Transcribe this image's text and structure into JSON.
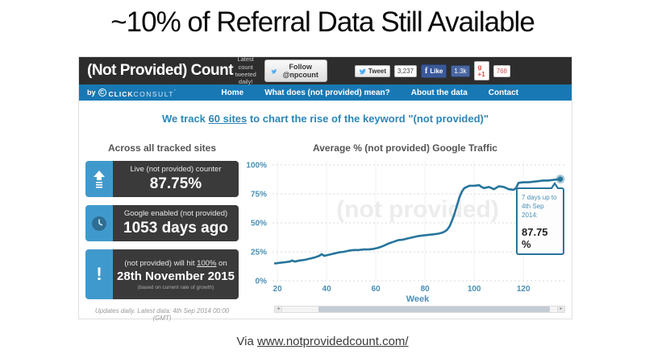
{
  "slide": {
    "title": "~10% of Referral Data Still Available",
    "attribution_prefix": "Via ",
    "attribution_link": "www.notprovidedcount.com/"
  },
  "site": {
    "header": {
      "logo": "(Not Provided) Count",
      "tweet_note_line1": "Latest count",
      "tweet_note_line2": "tweeted daily!",
      "follow_button": "Follow @npcount",
      "tweet_button": "Tweet",
      "tweet_count": "3,237",
      "like_button": "Like",
      "like_count": "1.3k",
      "fb_glyph": "f",
      "gplus_button": "g +1",
      "gplus_count": "768"
    },
    "nav": {
      "byline_by": "by",
      "logo_letter": "C",
      "brand_strong": "CLICK",
      "brand_light": "CONSULT",
      "brand_mark": "’",
      "items": [
        "Home",
        "What does (not provided) mean?",
        "About the data",
        "Contact"
      ]
    },
    "tagline": {
      "pre": "We track ",
      "link": "60 sites",
      "post": " to chart the rise of the keyword \"(not provided)\""
    },
    "left_panel": {
      "heading": "Across all tracked sites",
      "stat_live": {
        "label": "Live (not provided) counter",
        "value": "87.75%"
      },
      "stat_enabled": {
        "label": "Google enabled (not provided)",
        "value": "1053 days ago"
      },
      "stat_forecast": {
        "label_pre": "(not provided) will hit ",
        "label_link": "100%",
        "label_post": " on",
        "value": "28th November 2015",
        "note": "(based on current rate of growth)",
        "icon_glyph": "!"
      },
      "updated": "Updates daily. Latest data: 4th Sep 2014 00:00 (GMT)"
    },
    "chart_panel": {
      "title": "Average % (not provided) Google Traffic",
      "tooltip": {
        "line1": "7 days up to",
        "line2": "4th Sep 2014:",
        "value": "87.75 %"
      },
      "scroll_left_glyph": "◂",
      "scroll_right_glyph": "▸"
    }
  },
  "colors": {
    "header_bg": "#2d2d2d",
    "nav_bg": "#1878b4",
    "accent_blue": "#2e86b5",
    "icon_blue": "#4099cc",
    "box_bg": "#3a3a3a",
    "line_color": "#26759b",
    "axis_label": "#4a8fb5",
    "watermark": "#ececec",
    "like_blue": "#3b5998",
    "gplus_red": "#dd4b39"
  },
  "chart_data": {
    "type": "line",
    "title": "Average % (not provided) Google Traffic",
    "xlabel": "Week",
    "ylabel": "",
    "watermark": "(not provided)",
    "xlim": [
      18,
      136
    ],
    "ylim": [
      0,
      100
    ],
    "x_ticks": [
      20,
      40,
      60,
      80,
      100,
      120
    ],
    "y_ticks": [
      0,
      25,
      50,
      75,
      100
    ],
    "grid": true,
    "legend": false,
    "series": [
      {
        "name": "Average % (not provided) Google Traffic",
        "x": [
          19,
          21,
          23,
          25,
          26,
          27,
          29,
          31,
          33,
          35,
          37,
          38,
          39,
          41,
          43,
          45,
          47,
          49,
          51,
          53,
          55,
          57,
          59,
          61,
          63,
          65,
          67,
          69,
          71,
          73,
          75,
          77,
          79,
          81,
          83,
          85,
          87,
          88,
          89,
          90,
          91,
          92,
          93,
          94,
          95,
          96,
          98,
          100,
          102,
          103,
          104,
          106,
          108,
          110,
          112,
          114,
          116,
          117,
          118,
          120,
          122,
          124,
          126,
          128,
          130,
          132,
          134,
          135
        ],
        "y": [
          15,
          15.5,
          16,
          16.5,
          17.5,
          16.5,
          17.5,
          18,
          19,
          20,
          21.5,
          23,
          21.5,
          22.5,
          23.5,
          24.5,
          25,
          26,
          26.5,
          26.5,
          27,
          27,
          27.5,
          28.5,
          30,
          32,
          33.5,
          35,
          35.5,
          36.5,
          37.5,
          38.5,
          39,
          39.5,
          40,
          40.5,
          41.5,
          42.5,
          44,
          47,
          52,
          58,
          65,
          72,
          77,
          80,
          82,
          82,
          82.5,
          81,
          80,
          81,
          79,
          81.5,
          81,
          79,
          78.5,
          80,
          84.5,
          85,
          85,
          85.5,
          86,
          86.5,
          86.5,
          87,
          87.5,
          87.75
        ]
      }
    ],
    "end_point": {
      "x": 135,
      "y": 87.75,
      "label": "87.75 %"
    }
  }
}
